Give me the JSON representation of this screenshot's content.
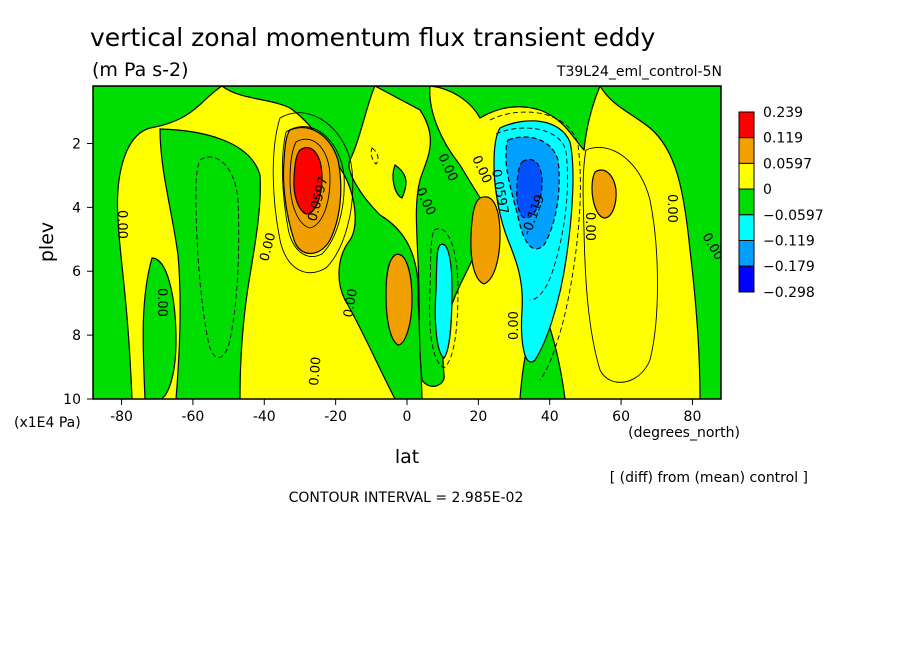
{
  "chart_data": {
    "type": "heatmap",
    "title": "vertical zonal momentum flux transient eddy",
    "units": "(m Pa s-2)",
    "run_label": "T39L24_eml_control-5N",
    "xlabel": "lat",
    "xunit": "(degrees_north)",
    "ylabel": "plev",
    "yunit": "(x1E4 Pa)",
    "xlim": [
      -88,
      88
    ],
    "ylim": [
      10,
      0.2
    ],
    "x_ticks": [
      -80,
      -60,
      -40,
      -20,
      0,
      20,
      40,
      60,
      80
    ],
    "x_tick_labels": [
      "-80",
      "-60",
      "-40",
      "-20",
      "0",
      "20",
      "40",
      "60",
      "80"
    ],
    "y_ticks": [
      2,
      4,
      6,
      8,
      10
    ],
    "y_tick_labels": [
      "2",
      "4",
      "6",
      "8",
      "10"
    ],
    "levels": [
      {
        "label": "0.239",
        "color": "#ff0000"
      },
      {
        "label": "0.119",
        "color": "#f0a000"
      },
      {
        "label": "0.0597",
        "color": "#ffff00"
      },
      {
        "label": "0",
        "color": "#00dd00"
      },
      {
        "label": "−0.0597",
        "color": "#00ffff"
      },
      {
        "label": "−0.119",
        "color": "#00a0ff"
      },
      {
        "label": "−0.179",
        "color": "#0050ff"
      },
      {
        "label": "−0.298",
        "color": ""
      }
    ],
    "extra_color": "#0000ff",
    "contour_interval_text": "CONTOUR INTERVAL = 2.985E-02",
    "diff_note": "[ (diff) from (mean) control ]",
    "contour_labels": [
      "0.00",
      "0.0597",
      "-0.119"
    ],
    "features": [
      {
        "kind": "max",
        "lat": -28,
        "plev": 3.0,
        "value": 0.2
      },
      {
        "kind": "max",
        "lat": 23,
        "plev": 4.8,
        "value": 0.15
      },
      {
        "kind": "max",
        "lat": -2,
        "plev": 7.0,
        "value": 0.1
      },
      {
        "kind": "max",
        "lat": 55,
        "plev": 3.6,
        "value": 0.08
      },
      {
        "kind": "min",
        "lat": 33,
        "plev": 3.2,
        "value": -0.2
      },
      {
        "kind": "min",
        "lat": 10,
        "plev": 6.5,
        "value": -0.1
      }
    ]
  }
}
